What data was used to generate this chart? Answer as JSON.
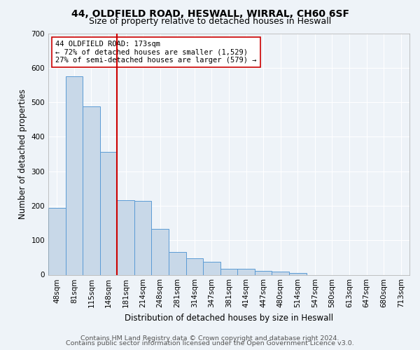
{
  "title_line1": "44, OLDFIELD ROAD, HESWALL, WIRRAL, CH60 6SF",
  "title_line2": "Size of property relative to detached houses in Heswall",
  "xlabel": "Distribution of detached houses by size in Heswall",
  "ylabel": "Number of detached properties",
  "categories": [
    "48sqm",
    "81sqm",
    "115sqm",
    "148sqm",
    "181sqm",
    "214sqm",
    "248sqm",
    "281sqm",
    "314sqm",
    "347sqm",
    "381sqm",
    "414sqm",
    "447sqm",
    "480sqm",
    "514sqm",
    "547sqm",
    "580sqm",
    "613sqm",
    "647sqm",
    "680sqm",
    "713sqm"
  ],
  "values": [
    193,
    575,
    487,
    356,
    216,
    215,
    133,
    65,
    48,
    37,
    18,
    18,
    12,
    10,
    6,
    0,
    0,
    0,
    0,
    0,
    0
  ],
  "bar_color": "#c8d8e8",
  "bar_edge_color": "#5b9bd5",
  "vline_x_index": 3.5,
  "vline_color": "#cc0000",
  "annotation_text": "44 OLDFIELD ROAD: 173sqm\n← 72% of detached houses are smaller (1,529)\n27% of semi-detached houses are larger (579) →",
  "annotation_box_color": "#ffffff",
  "annotation_box_edge_color": "#cc0000",
  "ylim": [
    0,
    700
  ],
  "yticks": [
    0,
    100,
    200,
    300,
    400,
    500,
    600,
    700
  ],
  "footer_line1": "Contains HM Land Registry data © Crown copyright and database right 2024.",
  "footer_line2": "Contains public sector information licensed under the Open Government Licence v3.0.",
  "background_color": "#eef3f8",
  "plot_bg_color": "#eef3f8",
  "grid_color": "#ffffff",
  "title_fontsize": 10,
  "subtitle_fontsize": 9,
  "axis_label_fontsize": 8.5,
  "tick_fontsize": 7.5,
  "footer_fontsize": 6.8
}
